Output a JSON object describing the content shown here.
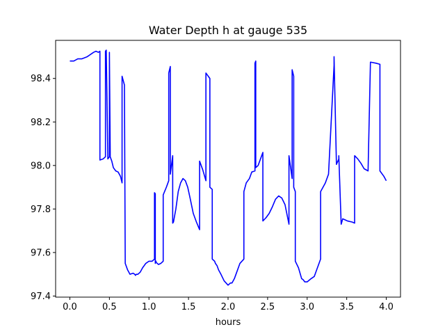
{
  "chart_data": {
    "type": "line",
    "title": "Water Depth h at gauge 535",
    "xlabel": "hours",
    "ylabel": "",
    "xlim": [
      -0.18,
      4.18
    ],
    "ylim": [
      97.395,
      98.575
    ],
    "xticks": [
      0.0,
      0.5,
      1.0,
      1.5,
      2.0,
      2.5,
      3.0,
      3.5,
      4.0
    ],
    "xtick_labels": [
      "0.0",
      "0.5",
      "1.0",
      "1.5",
      "2.0",
      "2.5",
      "3.0",
      "3.5",
      "4.0"
    ],
    "yticks": [
      97.4,
      97.6,
      97.8,
      98.0,
      98.2,
      98.4
    ],
    "ytick_labels": [
      "97.4",
      "97.6",
      "97.8",
      "98.0",
      "98.2",
      "98.4"
    ],
    "grid": false,
    "series": [
      {
        "color": "#0000ff",
        "x": [
          0.0,
          0.05,
          0.1,
          0.15,
          0.22,
          0.26,
          0.3,
          0.33,
          0.36,
          0.38,
          0.38,
          0.42,
          0.45,
          0.45,
          0.46,
          0.48,
          0.48,
          0.5,
          0.5,
          0.51,
          0.51,
          0.53,
          0.55,
          0.58,
          0.61,
          0.64,
          0.66,
          0.66,
          0.69,
          0.7,
          0.7,
          0.73,
          0.76,
          0.8,
          0.82,
          0.83,
          0.84,
          0.86,
          0.89,
          0.92,
          0.96,
          1.0,
          1.04,
          1.07,
          1.07,
          1.08,
          1.08,
          1.09,
          1.09,
          1.12,
          1.15,
          1.18,
          1.18,
          1.22,
          1.25,
          1.25,
          1.27,
          1.27,
          1.3,
          1.3,
          1.31,
          1.34,
          1.37,
          1.4,
          1.43,
          1.46,
          1.49,
          1.52,
          1.56,
          1.6,
          1.64,
          1.64,
          1.68,
          1.72,
          1.72,
          1.77,
          1.77,
          1.8,
          1.8,
          1.83,
          1.84,
          1.86,
          1.88,
          1.91,
          1.95,
          2.0,
          2.03,
          2.05,
          2.08,
          2.11,
          2.15,
          2.2,
          2.2,
          2.23,
          2.27,
          2.3,
          2.34,
          2.34,
          2.35,
          2.35,
          2.38,
          2.41,
          2.44,
          2.44,
          2.48,
          2.52,
          2.56,
          2.6,
          2.64,
          2.68,
          2.72,
          2.77,
          2.77,
          2.81,
          2.81,
          2.83,
          2.83,
          2.85,
          2.85,
          2.89,
          2.93,
          2.95,
          2.97,
          3.0,
          3.05,
          3.09,
          3.13,
          3.17,
          3.17,
          3.23,
          3.27,
          3.34,
          3.34,
          3.34,
          3.37,
          3.4,
          3.4,
          3.43,
          3.45,
          3.48,
          3.51,
          3.57,
          3.6,
          3.6,
          3.64,
          3.68,
          3.72,
          3.77,
          3.8,
          3.8,
          3.87,
          3.92,
          3.92,
          3.97,
          4.0
        ],
        "y": [
          98.48,
          98.48,
          98.49,
          98.49,
          98.5,
          98.51,
          98.52,
          98.525,
          98.52,
          98.525,
          98.025,
          98.03,
          98.04,
          98.525,
          98.53,
          98.04,
          98.03,
          98.04,
          98.52,
          98.06,
          98.04,
          98.02,
          97.99,
          97.975,
          97.97,
          97.95,
          97.92,
          98.41,
          98.37,
          97.55,
          97.55,
          97.52,
          97.5,
          97.505,
          97.5,
          97.495,
          97.5,
          97.5,
          97.51,
          97.53,
          97.55,
          97.56,
          97.56,
          97.57,
          97.875,
          97.87,
          97.55,
          97.56,
          97.555,
          97.545,
          97.55,
          97.56,
          97.865,
          97.9,
          97.93,
          98.425,
          98.455,
          97.96,
          98.045,
          97.735,
          97.74,
          97.8,
          97.88,
          97.92,
          97.94,
          97.93,
          97.9,
          97.85,
          97.78,
          97.74,
          97.705,
          98.02,
          97.98,
          97.93,
          98.425,
          98.4,
          97.9,
          97.89,
          97.57,
          97.56,
          97.55,
          97.54,
          97.52,
          97.5,
          97.47,
          97.45,
          97.46,
          97.46,
          97.48,
          97.51,
          97.55,
          97.57,
          97.88,
          97.92,
          97.94,
          97.97,
          97.975,
          98.47,
          98.48,
          97.99,
          98.0,
          98.03,
          98.06,
          97.745,
          97.76,
          97.78,
          97.81,
          97.845,
          97.86,
          97.85,
          97.82,
          97.73,
          98.045,
          97.94,
          98.44,
          98.41,
          97.9,
          97.88,
          97.56,
          97.53,
          97.48,
          97.475,
          97.465,
          97.465,
          97.48,
          97.49,
          97.53,
          97.57,
          97.88,
          97.92,
          97.96,
          98.46,
          98.49,
          98.5,
          98.005,
          98.03,
          98.045,
          97.73,
          97.755,
          97.75,
          97.745,
          97.74,
          97.735,
          98.045,
          98.03,
          98.01,
          97.985,
          97.975,
          98.475,
          98.475,
          98.47,
          98.465,
          97.975,
          97.95,
          97.93
        ]
      }
    ]
  }
}
